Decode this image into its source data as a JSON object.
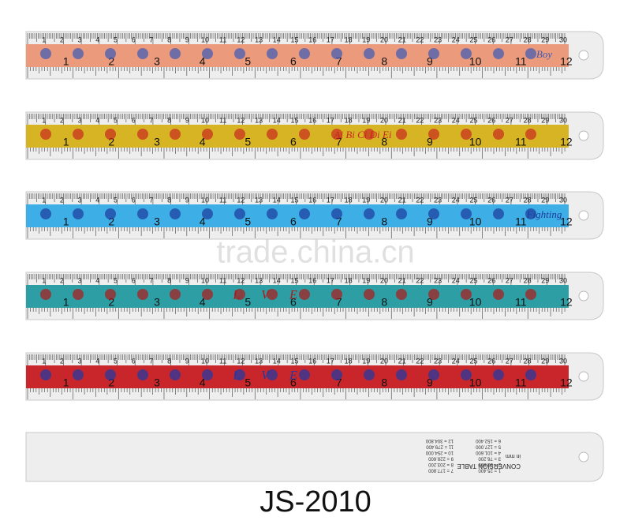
{
  "watermark": "trade.china.cn",
  "model": "JS-2010",
  "cm_labels": [
    1,
    2,
    3,
    4,
    5,
    6,
    7,
    8,
    9,
    10,
    11,
    12,
    13,
    14,
    15,
    16,
    17,
    18,
    19,
    20,
    21,
    22,
    23,
    24,
    25,
    26,
    27,
    28,
    29,
    30
  ],
  "inch_labels": [
    1,
    2,
    3,
    4,
    5,
    6,
    7,
    8,
    9,
    10,
    11,
    12
  ],
  "rulers": [
    {
      "color": "#ec9a7c",
      "ink": "#3a5ab8",
      "words": [
        "Boy"
      ]
    },
    {
      "color": "#d6b424",
      "ink": "#c8281e",
      "words": [
        "Ai Bi Ci Di Ei"
      ]
    },
    {
      "color": "#3eaee6",
      "ink": "#1c3a9c",
      "words": [
        "Fighting"
      ]
    },
    {
      "color": "#2c9ea4",
      "ink": "#b01818",
      "words": [
        "L",
        "V",
        "E"
      ]
    },
    {
      "color": "#c8262a",
      "ink": "#1c3aa8",
      "words": [
        "L",
        "V",
        "E"
      ]
    }
  ],
  "conversion": {
    "title": "CONVERSION TABLE",
    "header": "in     mm",
    "rows": [
      "1 = 25.400",
      "2 = 50.800",
      "3 = 76.200",
      "4 = 101.600",
      "5 = 127.000",
      "6 = 152.400",
      "7 = 177.800",
      "8 = 203.200",
      "9 = 228.600",
      "10 = 254.000",
      "11 = 279.400",
      "12 = 304.800"
    ]
  }
}
